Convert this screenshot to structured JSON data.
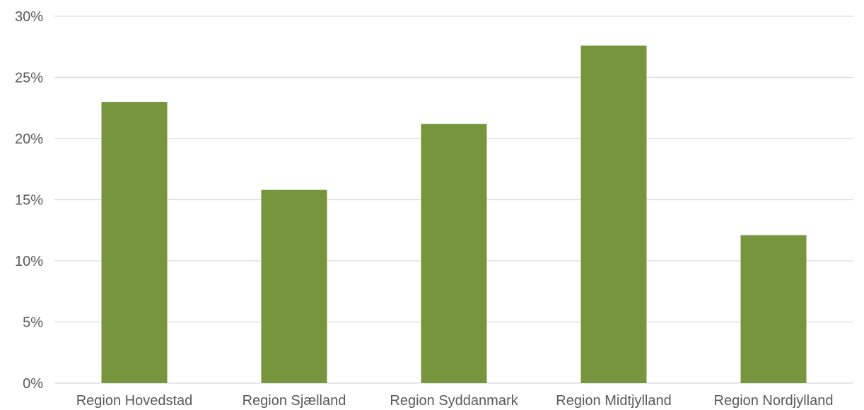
{
  "chart_data": {
    "type": "bar",
    "categories": [
      "Region Hovedstad",
      "Region Sjælland",
      "Region Syddanmark",
      "Region Midtjylland",
      "Region Nordjylland"
    ],
    "values": [
      23.0,
      15.8,
      21.2,
      27.6,
      12.1
    ],
    "title": "",
    "xlabel": "",
    "ylabel": "",
    "ylim": [
      0,
      30
    ],
    "yticks": [
      0,
      5,
      10,
      15,
      20,
      25,
      30
    ],
    "ytick_labels": [
      "0%",
      "5%",
      "10%",
      "15%",
      "20%",
      "25%",
      "30%"
    ],
    "grid": true,
    "legend": "none",
    "bar_color": "#77953c",
    "gridline_color": "#d9d9d9",
    "text_color": "#595959"
  }
}
